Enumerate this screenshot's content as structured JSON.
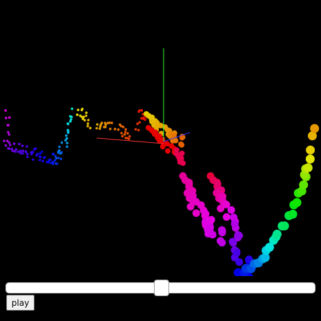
{
  "scene": {
    "background": "#000000",
    "axis_colors": {
      "x": "#ff3333",
      "y": "#33ff33",
      "z": "#3333ff"
    }
  },
  "timeline": {
    "position": 0.5
  },
  "controls": {
    "play_label": "play"
  }
}
